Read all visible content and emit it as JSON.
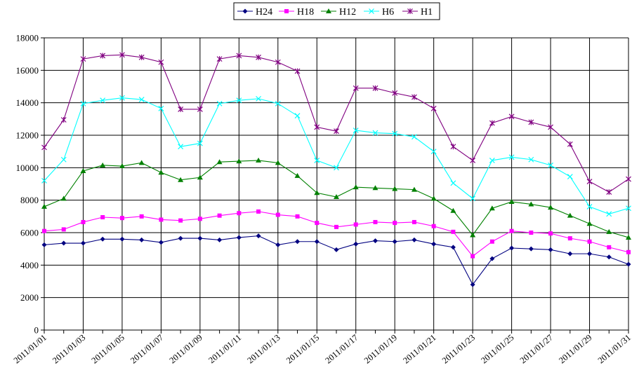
{
  "chart_data": {
    "type": "line",
    "x": [
      "2011/01/01",
      "2011/01/02",
      "2011/01/03",
      "2011/01/04",
      "2011/01/05",
      "2011/01/06",
      "2011/01/07",
      "2011/01/08",
      "2011/01/09",
      "2011/01/10",
      "2011/01/11",
      "2011/01/12",
      "2011/01/13",
      "2011/01/14",
      "2011/01/15",
      "2011/01/16",
      "2011/01/17",
      "2011/01/18",
      "2011/01/19",
      "2011/01/20",
      "2011/01/21",
      "2011/01/22",
      "2011/01/23",
      "2011/01/24",
      "2011/01/25",
      "2011/01/26",
      "2011/01/27",
      "2011/01/28",
      "2011/01/29",
      "2011/01/30",
      "2011/01/31"
    ],
    "x_tick_labels": [
      "2011/01/01",
      "2011/01/03",
      "2011/01/05",
      "2011/01/07",
      "2011/01/09",
      "2011/01/11",
      "2011/01/13",
      "2011/01/15",
      "2011/01/17",
      "2011/01/19",
      "2011/01/21",
      "2011/01/23",
      "2011/01/25",
      "2011/01/27",
      "2011/01/29",
      "2011/01/31"
    ],
    "ylim": [
      0,
      18000
    ],
    "y_ticks": [
      0,
      2000,
      4000,
      6000,
      8000,
      10000,
      12000,
      14000,
      16000,
      18000
    ],
    "grid": "on",
    "legend_position": "top",
    "series": [
      {
        "name": "H24",
        "color": "#000080",
        "marker": "diamond",
        "values": [
          5250,
          5350,
          5350,
          5600,
          5600,
          5550,
          5400,
          5650,
          5650,
          5550,
          5700,
          5800,
          5250,
          5450,
          5450,
          4950,
          5300,
          5500,
          5450,
          5550,
          5300,
          5100,
          2800,
          4400,
          5050,
          5000,
          4950,
          4700,
          4700,
          4500,
          4050
        ]
      },
      {
        "name": "H18",
        "color": "#FF00FF",
        "marker": "square",
        "values": [
          6100,
          6200,
          6650,
          6950,
          6900,
          7000,
          6800,
          6750,
          6850,
          7050,
          7200,
          7300,
          7100,
          7000,
          6600,
          6350,
          6500,
          6650,
          6600,
          6650,
          6400,
          6050,
          4550,
          5450,
          6100,
          6000,
          5950,
          5650,
          5450,
          5100,
          4800
        ]
      },
      {
        "name": "H12",
        "color": "#008000",
        "marker": "triangle",
        "values": [
          7600,
          8100,
          9800,
          10150,
          10100,
          10300,
          9700,
          9250,
          9400,
          10350,
          10400,
          10450,
          10300,
          9500,
          8450,
          8200,
          8800,
          8750,
          8700,
          8650,
          8100,
          7350,
          5850,
          7500,
          7900,
          7750,
          7550,
          7050,
          6550,
          6050,
          5700
        ]
      },
      {
        "name": "H6",
        "color": "#00FFFF",
        "marker": "x",
        "values": [
          9200,
          10500,
          13950,
          14150,
          14300,
          14200,
          13650,
          11300,
          11500,
          13950,
          14150,
          14250,
          13950,
          13200,
          10450,
          10000,
          12300,
          12150,
          12100,
          11900,
          11000,
          9050,
          8100,
          10450,
          10650,
          10500,
          10150,
          9450,
          7600,
          7150,
          7500
        ]
      },
      {
        "name": "H1",
        "color": "#800080",
        "marker": "star",
        "values": [
          11250,
          12950,
          16700,
          16900,
          16950,
          16800,
          16500,
          13600,
          13600,
          16700,
          16900,
          16800,
          16500,
          15950,
          12500,
          12250,
          14900,
          14900,
          14600,
          14350,
          13650,
          11300,
          10450,
          12750,
          13150,
          12800,
          12500,
          11450,
          9150,
          8500,
          9300
        ]
      }
    ]
  }
}
